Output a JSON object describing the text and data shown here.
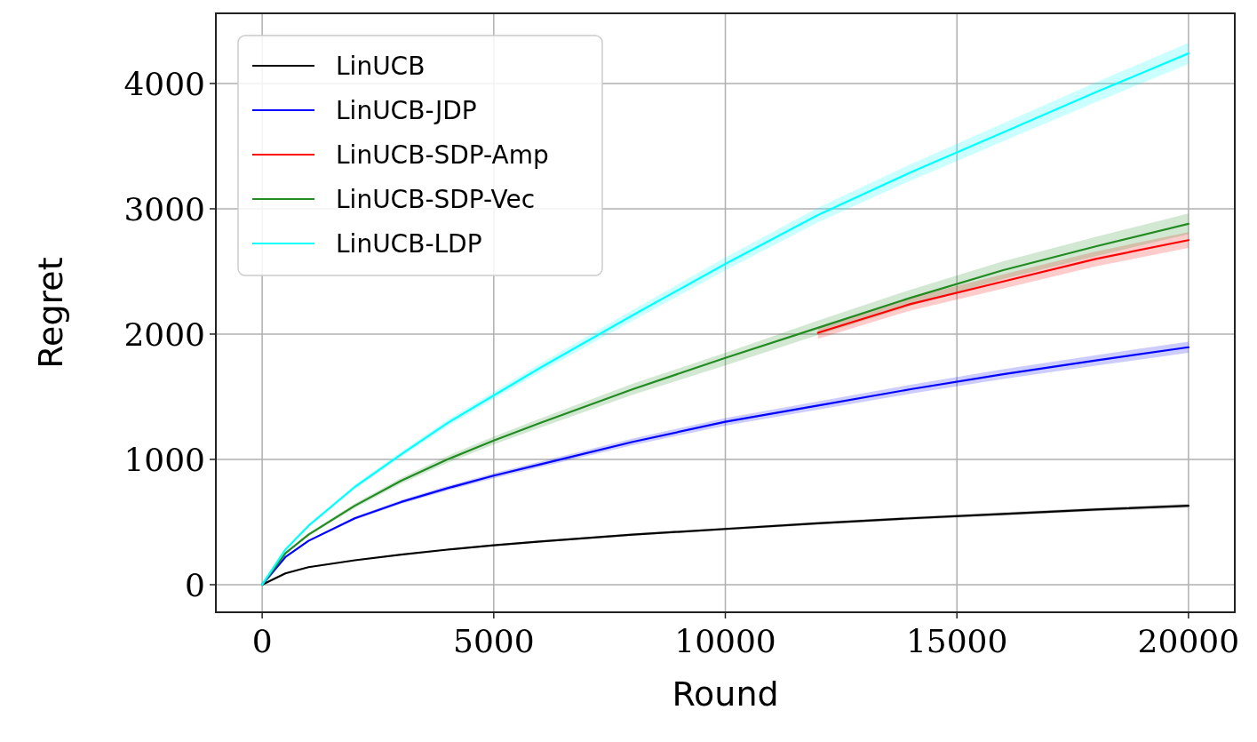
{
  "chart_data": {
    "type": "line",
    "xlabel": "Round",
    "ylabel": "Regret",
    "xlim": [
      -1000,
      21000
    ],
    "ylim": [
      -220,
      4560
    ],
    "xticks": [
      0,
      5000,
      10000,
      15000,
      20000
    ],
    "yticks": [
      0,
      1000,
      2000,
      3000,
      4000
    ],
    "grid": true,
    "legend": "top left",
    "x": [
      0,
      500,
      1000,
      2000,
      3000,
      4000,
      5000,
      6000,
      8000,
      10000,
      12000,
      14000,
      16000,
      18000,
      20000
    ],
    "series": [
      {
        "name": "LinUCB",
        "color": "#000000",
        "values": [
          0,
          90,
          140,
          195,
          240,
          280,
          315,
          345,
          400,
          445,
          490,
          530,
          565,
          600,
          630
        ],
        "lower": [
          0,
          88,
          137,
          191,
          235,
          274,
          308,
          337,
          391,
          435,
          479,
          518,
          552,
          586,
          615
        ],
        "upper": [
          0,
          92,
          143,
          199,
          245,
          286,
          322,
          353,
          409,
          455,
          501,
          542,
          578,
          614,
          645
        ]
      },
      {
        "name": "LinUCB-JDP",
        "color": "#0000ff",
        "values": [
          0,
          220,
          350,
          530,
          660,
          770,
          870,
          960,
          1140,
          1300,
          1430,
          1560,
          1680,
          1790,
          1895
        ],
        "lower": [
          0,
          215,
          342,
          518,
          645,
          752,
          850,
          938,
          1114,
          1270,
          1397,
          1524,
          1641,
          1748,
          1850
        ],
        "upper": [
          0,
          225,
          358,
          542,
          675,
          788,
          890,
          982,
          1166,
          1330,
          1463,
          1596,
          1719,
          1832,
          1940
        ]
      },
      {
        "name": "LinUCB-SDP-Amp",
        "color": "#ff0000",
        "values": [
          null,
          null,
          null,
          null,
          null,
          null,
          null,
          null,
          null,
          null,
          2010,
          2240,
          2420,
          2600,
          2750
        ],
        "lower": [
          null,
          null,
          null,
          null,
          null,
          null,
          null,
          null,
          null,
          null,
          1963,
          2188,
          2364,
          2540,
          2687
        ],
        "upper": [
          null,
          null,
          null,
          null,
          null,
          null,
          null,
          null,
          null,
          null,
          2057,
          2292,
          2476,
          2660,
          2813
        ]
      },
      {
        "name": "LinUCB-SDP-Vec",
        "color": "#228b22",
        "values": [
          0,
          250,
          400,
          630,
          830,
          1000,
          1150,
          1290,
          1560,
          1810,
          2050,
          2290,
          2510,
          2700,
          2880
        ],
        "lower": [
          0,
          243,
          389,
          612,
          807,
          972,
          1118,
          1254,
          1516,
          1749,
          1992,
          2225,
          2439,
          2623,
          2798
        ],
        "upper": [
          0,
          257,
          411,
          648,
          853,
          1028,
          1182,
          1326,
          1604,
          1851,
          2108,
          2355,
          2581,
          2777,
          2962
        ]
      },
      {
        "name": "LinUCB-LDP",
        "color": "#00ffff",
        "values": [
          0,
          280,
          470,
          780,
          1040,
          1290,
          1510,
          1730,
          2150,
          2560,
          2950,
          3290,
          3610,
          3930,
          4240
        ],
        "lower": [
          0,
          274,
          460,
          764,
          1019,
          1264,
          1480,
          1696,
          2107,
          2509,
          2891,
          3224,
          3538,
          3851,
          4155
        ],
        "upper": [
          0,
          286,
          480,
          796,
          1061,
          1316,
          1540,
          1764,
          2193,
          2611,
          3009,
          3356,
          3682,
          4009,
          4325
        ]
      }
    ]
  }
}
